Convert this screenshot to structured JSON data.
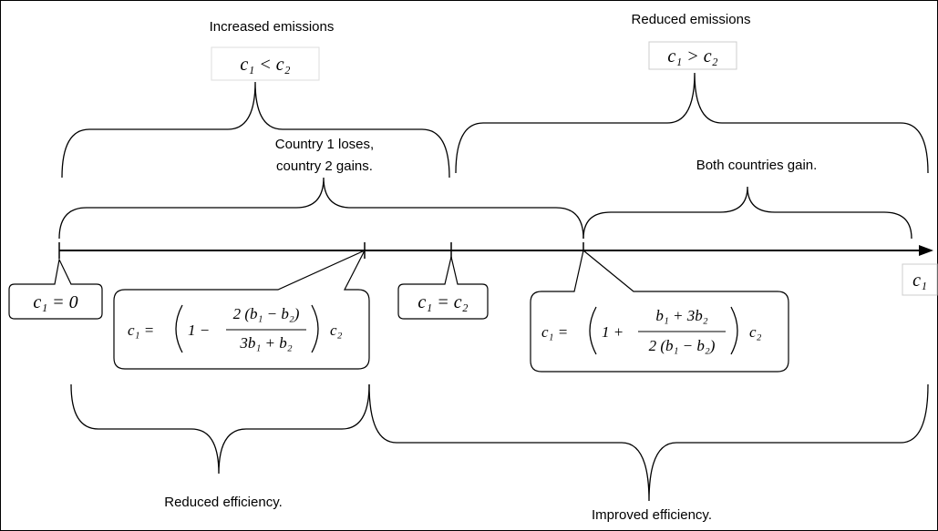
{
  "top_braces": [
    {
      "label": "Increased emissions",
      "condition": "c₁ < c₂"
    },
    {
      "label": "Reduced emissions",
      "condition": "c₁ > c₂"
    }
  ],
  "upper_braces": [
    {
      "label_lines": [
        "Country 1 loses,",
        "country 2 gains."
      ]
    },
    {
      "label_lines": [
        "Both countries gain."
      ]
    }
  ],
  "lower_braces": [
    {
      "label": "Reduced efficiency."
    },
    {
      "label": "Improved efficiency."
    }
  ],
  "axis_label": "c₁",
  "callouts": [
    {
      "formula": "c₁ = 0"
    },
    {
      "lhs": "c₁ =",
      "before": "1 −",
      "numerator": "2 (b₁ − b₂)",
      "denominator": "3b₁ + b₂",
      "after": "c₂"
    },
    {
      "formula": "c₁ = c₂"
    },
    {
      "lhs": "c₁ =",
      "before": "1 +",
      "numerator": "b₁ + 3b₂",
      "denominator": "2 (b₁ − b₂)",
      "after": "c₂"
    }
  ]
}
